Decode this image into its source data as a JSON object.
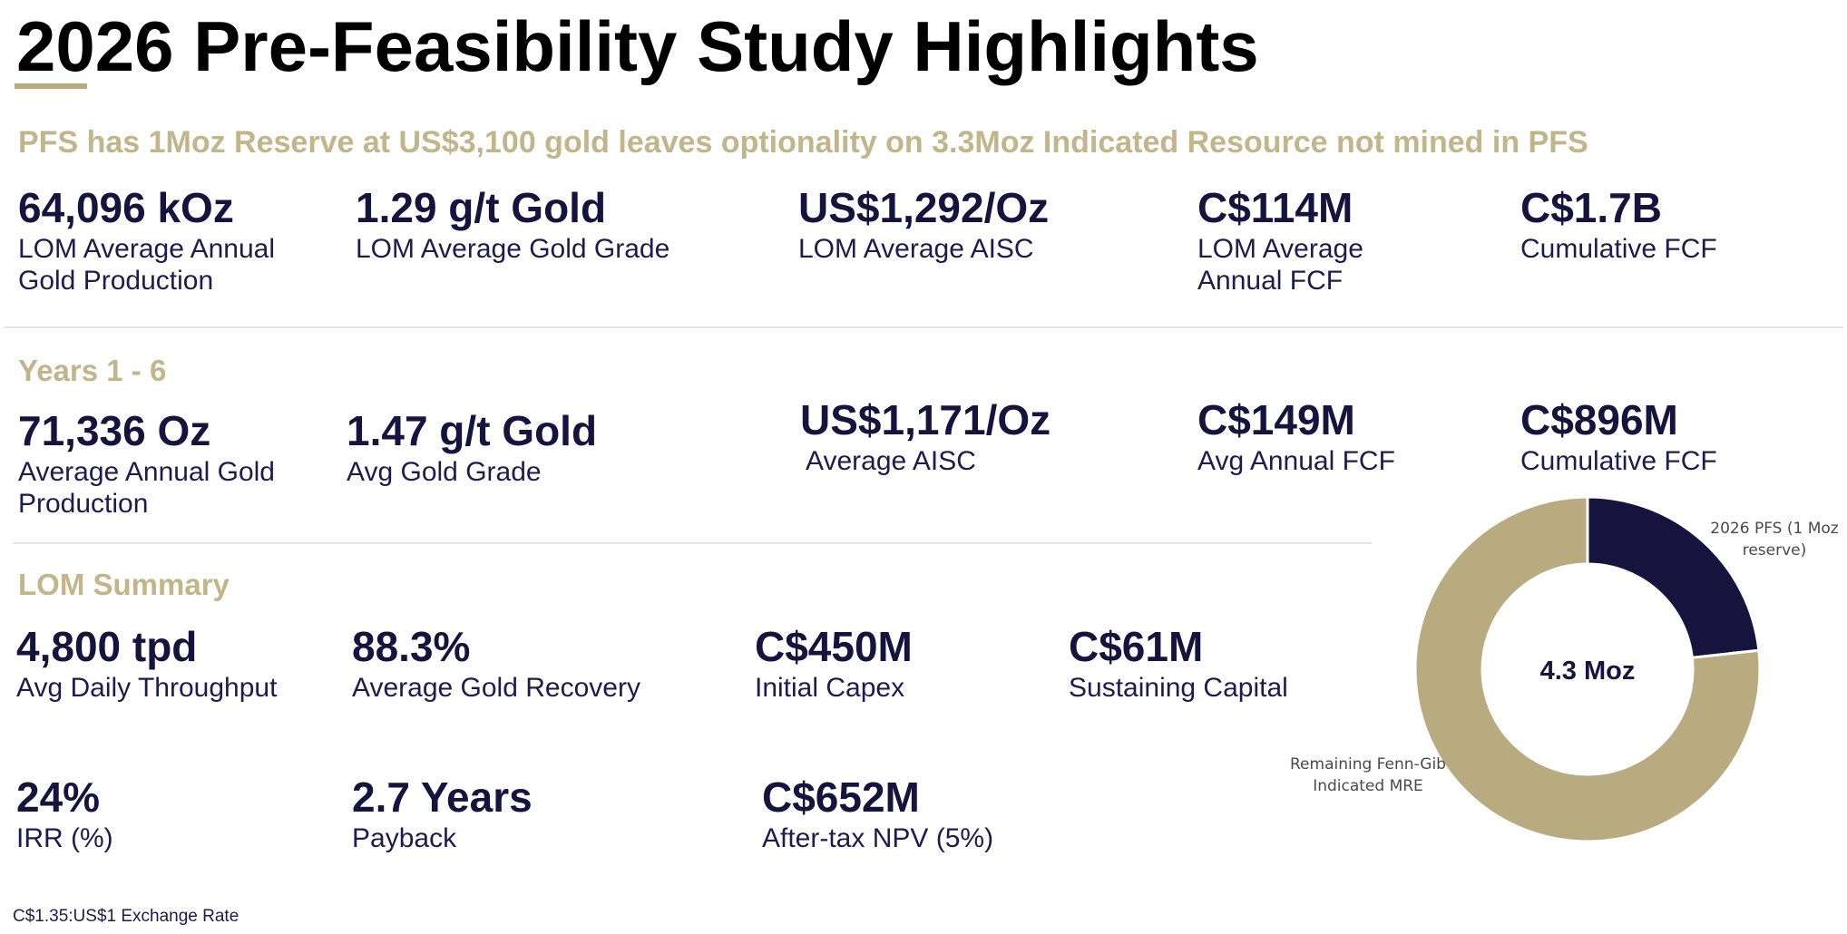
{
  "title": "2026 Pre-Feasibility Study Highlights",
  "subtitle": "PFS has 1Moz Reserve at US$3,100 gold leaves optionality on 3.3Moz Indicated Resource not mined in PFS",
  "lom_top": {
    "metrics": [
      {
        "value": "64,096 kOz",
        "label": "LOM Average Annual Gold Production"
      },
      {
        "value": "1.29 g/t Gold",
        "label": "LOM Average Gold Grade"
      },
      {
        "value": "US$1,292/Oz",
        "label": "LOM Average AISC"
      },
      {
        "value": "C$114M",
        "label": "LOM Average Annual FCF"
      },
      {
        "value": "C$1.7B",
        "label": "Cumulative FCF"
      }
    ]
  },
  "years": {
    "heading": "Years 1 - 6",
    "metrics": [
      {
        "value": "71,336 Oz",
        "label": "Average Annual Gold Production"
      },
      {
        "value": "1.47 g/t Gold",
        "label": "Avg Gold Grade"
      },
      {
        "value": "US$1,171/Oz",
        "label": "Average AISC"
      },
      {
        "value": "C$149M",
        "label": "Avg Annual FCF"
      },
      {
        "value": "C$896M",
        "label": "Cumulative FCF"
      }
    ]
  },
  "lom_summary": {
    "heading": "LOM Summary",
    "row1": [
      {
        "value": "4,800 tpd",
        "label": "Avg Daily Throughput"
      },
      {
        "value": "88.3%",
        "label": "Average Gold Recovery"
      },
      {
        "value": "C$450M",
        "label": "Initial Capex"
      },
      {
        "value": "C$61M",
        "label": "Sustaining Capital"
      }
    ],
    "row2": [
      {
        "value": "24%",
        "label": "IRR (%)"
      },
      {
        "value": "2.7 Years",
        "label": "Payback"
      },
      {
        "value": "C$652M",
        "label": "After-tax NPV (5%)"
      }
    ]
  },
  "footnote": "C$1.35:US$1 Exchange Rate",
  "chart_data": {
    "type": "pie",
    "center_label": "4.3 Moz",
    "slices": [
      {
        "label": "2026 PFS  (1 Moz reserve)",
        "value": 1.0,
        "color": "#16133f"
      },
      {
        "label": "Remaining Fenn-Gib Indicated MRE",
        "value": 3.3,
        "color": "#b8ab7f"
      }
    ]
  }
}
